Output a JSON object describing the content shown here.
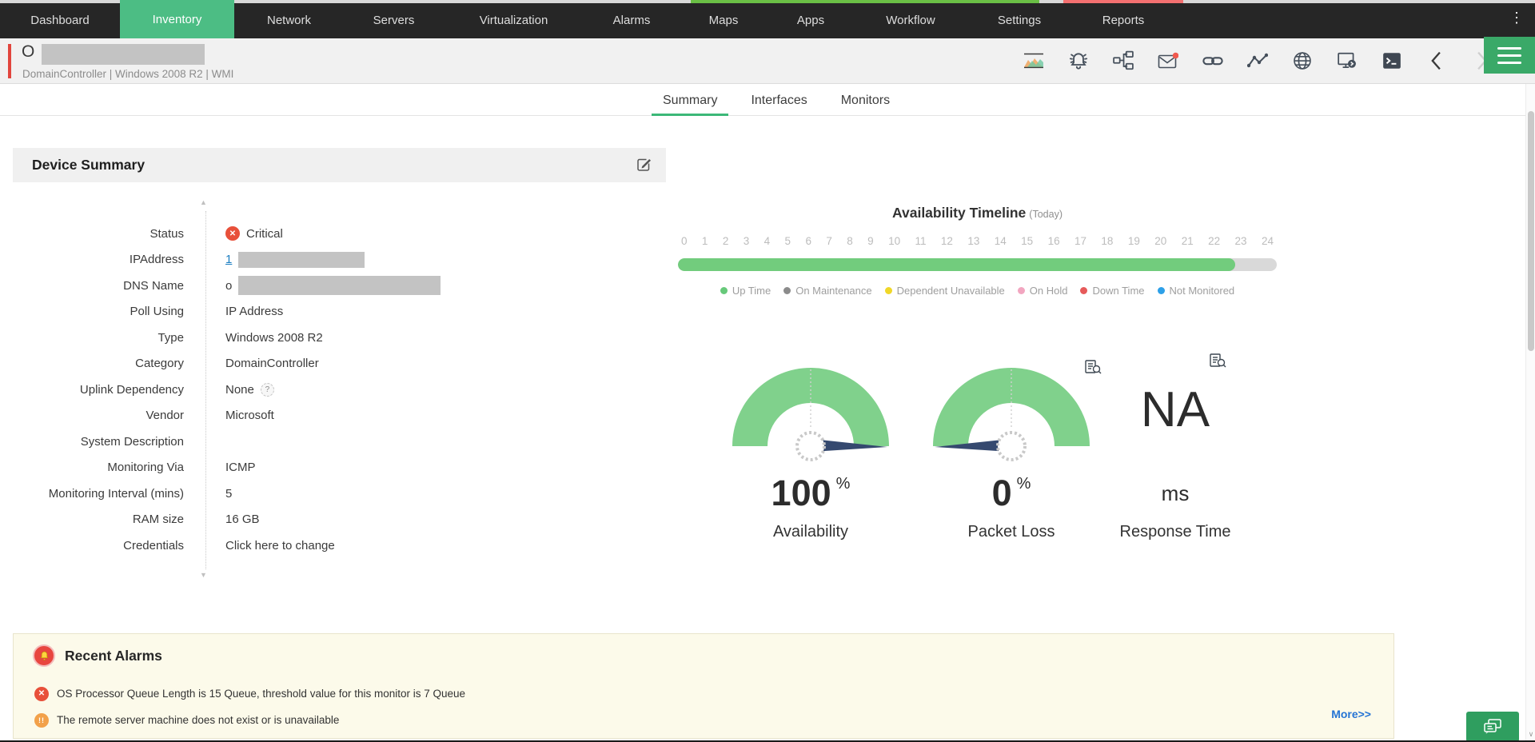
{
  "top_nav": {
    "items": [
      "Dashboard",
      "Inventory",
      "Network",
      "Servers",
      "Virtualization",
      "Alarms",
      "Maps",
      "Apps",
      "Workflow",
      "Settings",
      "Reports"
    ],
    "active": "Inventory"
  },
  "device_header": {
    "name_visible": "O",
    "name_redacted": true,
    "subtitle": "DomainController | Windows 2008 R2 | WMI",
    "icons": [
      "performance-chart-icon",
      "alarm-bell-icon",
      "workflow-icon",
      "mail-icon",
      "link-icon",
      "line-graph-icon",
      "globe-icon",
      "remote-session-icon",
      "terminal-icon",
      "prev-chevron-icon",
      "next-chevron-icon",
      "menu-hamburger-icon"
    ],
    "mail_has_notification": true
  },
  "tabs": {
    "items": [
      "Summary",
      "Interfaces",
      "Monitors"
    ],
    "active": "Summary"
  },
  "device_summary": {
    "title": "Device Summary",
    "fields": [
      {
        "label": "Status",
        "kind": "status",
        "value": "Critical"
      },
      {
        "label": "IPAddress",
        "kind": "link-redacted",
        "value": "1"
      },
      {
        "label": "DNS Name",
        "kind": "text-redacted",
        "value": "o"
      },
      {
        "label": "Poll Using",
        "kind": "text",
        "value": "IP Address"
      },
      {
        "label": "Type",
        "kind": "text",
        "value": "Windows 2008 R2"
      },
      {
        "label": "Category",
        "kind": "text",
        "value": "DomainController"
      },
      {
        "label": "Uplink Dependency",
        "kind": "help",
        "value": "None"
      },
      {
        "label": "Vendor",
        "kind": "text",
        "value": "Microsoft"
      },
      {
        "label": "System Description",
        "kind": "text",
        "value": ""
      },
      {
        "label": "Monitoring Via",
        "kind": "text",
        "value": "ICMP"
      },
      {
        "label": "Monitoring Interval (mins)",
        "kind": "text",
        "value": "5"
      },
      {
        "label": "RAM size",
        "kind": "text",
        "value": "16 GB"
      },
      {
        "label": "Credentials",
        "kind": "action",
        "value": "Click here to change"
      }
    ]
  },
  "availability_timeline": {
    "title": "Availability Timeline",
    "subtitle": "(Today)",
    "hour_start": 0,
    "hour_end": 24,
    "uptime_percent": 93,
    "colors": {
      "up": "#72cc7d",
      "remaining": "#d9d9d9"
    },
    "legend": [
      {
        "label": "Up Time",
        "color": "#67c97a"
      },
      {
        "label": "On Maintenance",
        "color": "#8b8b8b"
      },
      {
        "label": "Dependent Unavailable",
        "color": "#f0d728"
      },
      {
        "label": "On Hold",
        "color": "#f2a6c0"
      },
      {
        "label": "Down Time",
        "color": "#e65a5a"
      },
      {
        "label": "Not Monitored",
        "color": "#2da0e8"
      }
    ]
  },
  "gauges": [
    {
      "label": "Availability",
      "value": "100",
      "unit": "%",
      "dial": true,
      "needle": "right",
      "dial_color": "#80d18c",
      "needle_color": "#35496f"
    },
    {
      "label": "Packet Loss",
      "value": "0",
      "unit": "%",
      "dial": true,
      "needle": "left",
      "dial_color": "#80d18c",
      "needle_color": "#35496f"
    },
    {
      "label": "Response Time",
      "value": "NA",
      "unit": "ms",
      "dial": false
    }
  ],
  "recent_alarms": {
    "title": "Recent Alarms",
    "items": [
      {
        "severity": "critical",
        "text": "OS Processor Queue Length is 15 Queue, threshold value for this monitor is 7 Queue"
      },
      {
        "severity": "attention",
        "text": "The remote server machine does not exist or is unavailable"
      }
    ],
    "more_label": "More>>"
  },
  "glyphs": {
    "kebab": "⋮",
    "help": "?",
    "critical_x": "✕",
    "attention": "!!",
    "scroll_up": "▲",
    "scroll_down": "▼",
    "scrollbar_down": "∨"
  },
  "status_colors": {
    "critical": "#e8503a",
    "attention": "#f2a14a",
    "accent_green": "#4cbd84"
  }
}
